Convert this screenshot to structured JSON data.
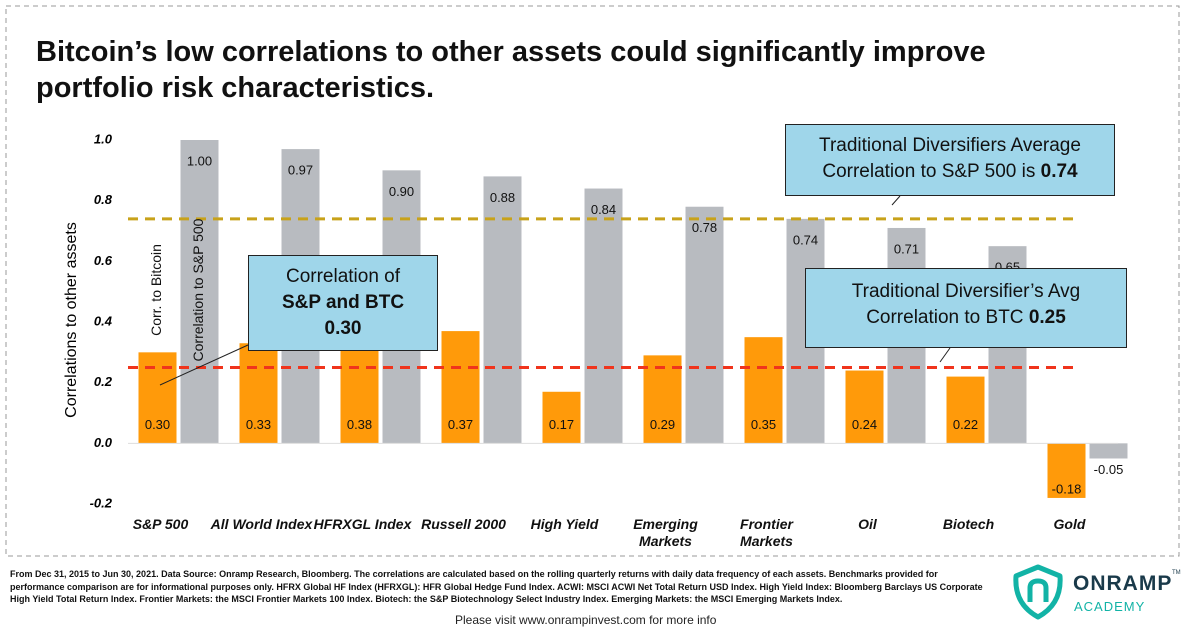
{
  "chart_data": {
    "type": "bar",
    "title": "Bitcoin’s low correlations to other assets could significantly improve portfolio risk characteristics.",
    "y_label": "Correlations to other assets",
    "categories": [
      "S&P 500",
      "All World Index",
      "HFRXGL Index",
      "Russell 2000",
      "High Yield",
      "Emerging Markets",
      "Frontier Markets",
      "Oil",
      "Biotech",
      "Gold"
    ],
    "series": [
      {
        "name": "Corr. to Bitcoin",
        "color": "#ff9a0a",
        "values": [
          0.3,
          0.33,
          0.38,
          0.37,
          0.17,
          0.29,
          0.35,
          0.24,
          0.22,
          -0.18
        ],
        "value_labels": [
          "0.30",
          "0.33",
          "0.38",
          "0.37",
          "0.17",
          "0.29",
          "0.35",
          "0.24",
          "0.22",
          "-0.18"
        ]
      },
      {
        "name": "Correlation to S&P 500",
        "color": "#b8bbc0",
        "values": [
          1.0,
          0.97,
          0.9,
          0.88,
          0.84,
          0.78,
          0.74,
          0.71,
          0.65,
          -0.05
        ],
        "value_labels": [
          "1.00",
          "0.97",
          "0.90",
          "0.88",
          "0.84",
          "0.78",
          "0.74",
          "0.71",
          "0.65",
          "-0.05"
        ]
      }
    ],
    "ylim": [
      -0.2,
      1.0
    ],
    "yticks": [
      {
        "value": -0.2,
        "label": "-0.2"
      },
      {
        "value": 0,
        "label": "0.0"
      },
      {
        "value": 0.2,
        "label": "0.2"
      },
      {
        "value": 0.4,
        "label": "0.4"
      },
      {
        "value": 0.6,
        "label": "0.6"
      },
      {
        "value": 0.8,
        "label": "0.8"
      },
      {
        "value": 1.0,
        "label": "1.0"
      }
    ],
    "reference_lines": [
      {
        "value": 0.74,
        "color": "#c8a21a"
      },
      {
        "value": 0.25,
        "color": "#f0341c"
      }
    ],
    "annotations": [
      {
        "text": "Traditional Diversifiers Average Correlation to S&P 500 is ",
        "bold": "0.74"
      },
      {
        "text": "Traditional Diversifier’s Avg Correlation to BTC ",
        "bold": "0.25"
      },
      {
        "text": "Correlation of ",
        "bold": "S&P and BTC 0.30"
      }
    ]
  },
  "footer": {
    "note": "From Dec 31, 2015 to Jun 30, 2021. Data Source: Onramp Research, Bloomberg. The correlations are calculated based on the rolling quarterly returns with daily data frequency of each assets. Benchmarks provided for performance comparison are for informational purposes only. HFRX Global HF Index (HFRXGL): HFR Global Hedge Fund Index. ACWI: MSCI ACWI Net Total Return USD Index. High Yield Index: Bloomberg Barclays US Corporate High Yield Total Return Index. Frontier Markets: the MSCI Frontier Markets 100 Index. Biotech: the S&P Biotechnology Select Industry Index. Emerging Markets: the MSCI Emerging Markets Index.",
    "visit": "Please visit www.onrampinvest.com for more info",
    "logo": "ONRAMP",
    "logo_tm": "TM",
    "logo_sub": "ACADEMY"
  }
}
